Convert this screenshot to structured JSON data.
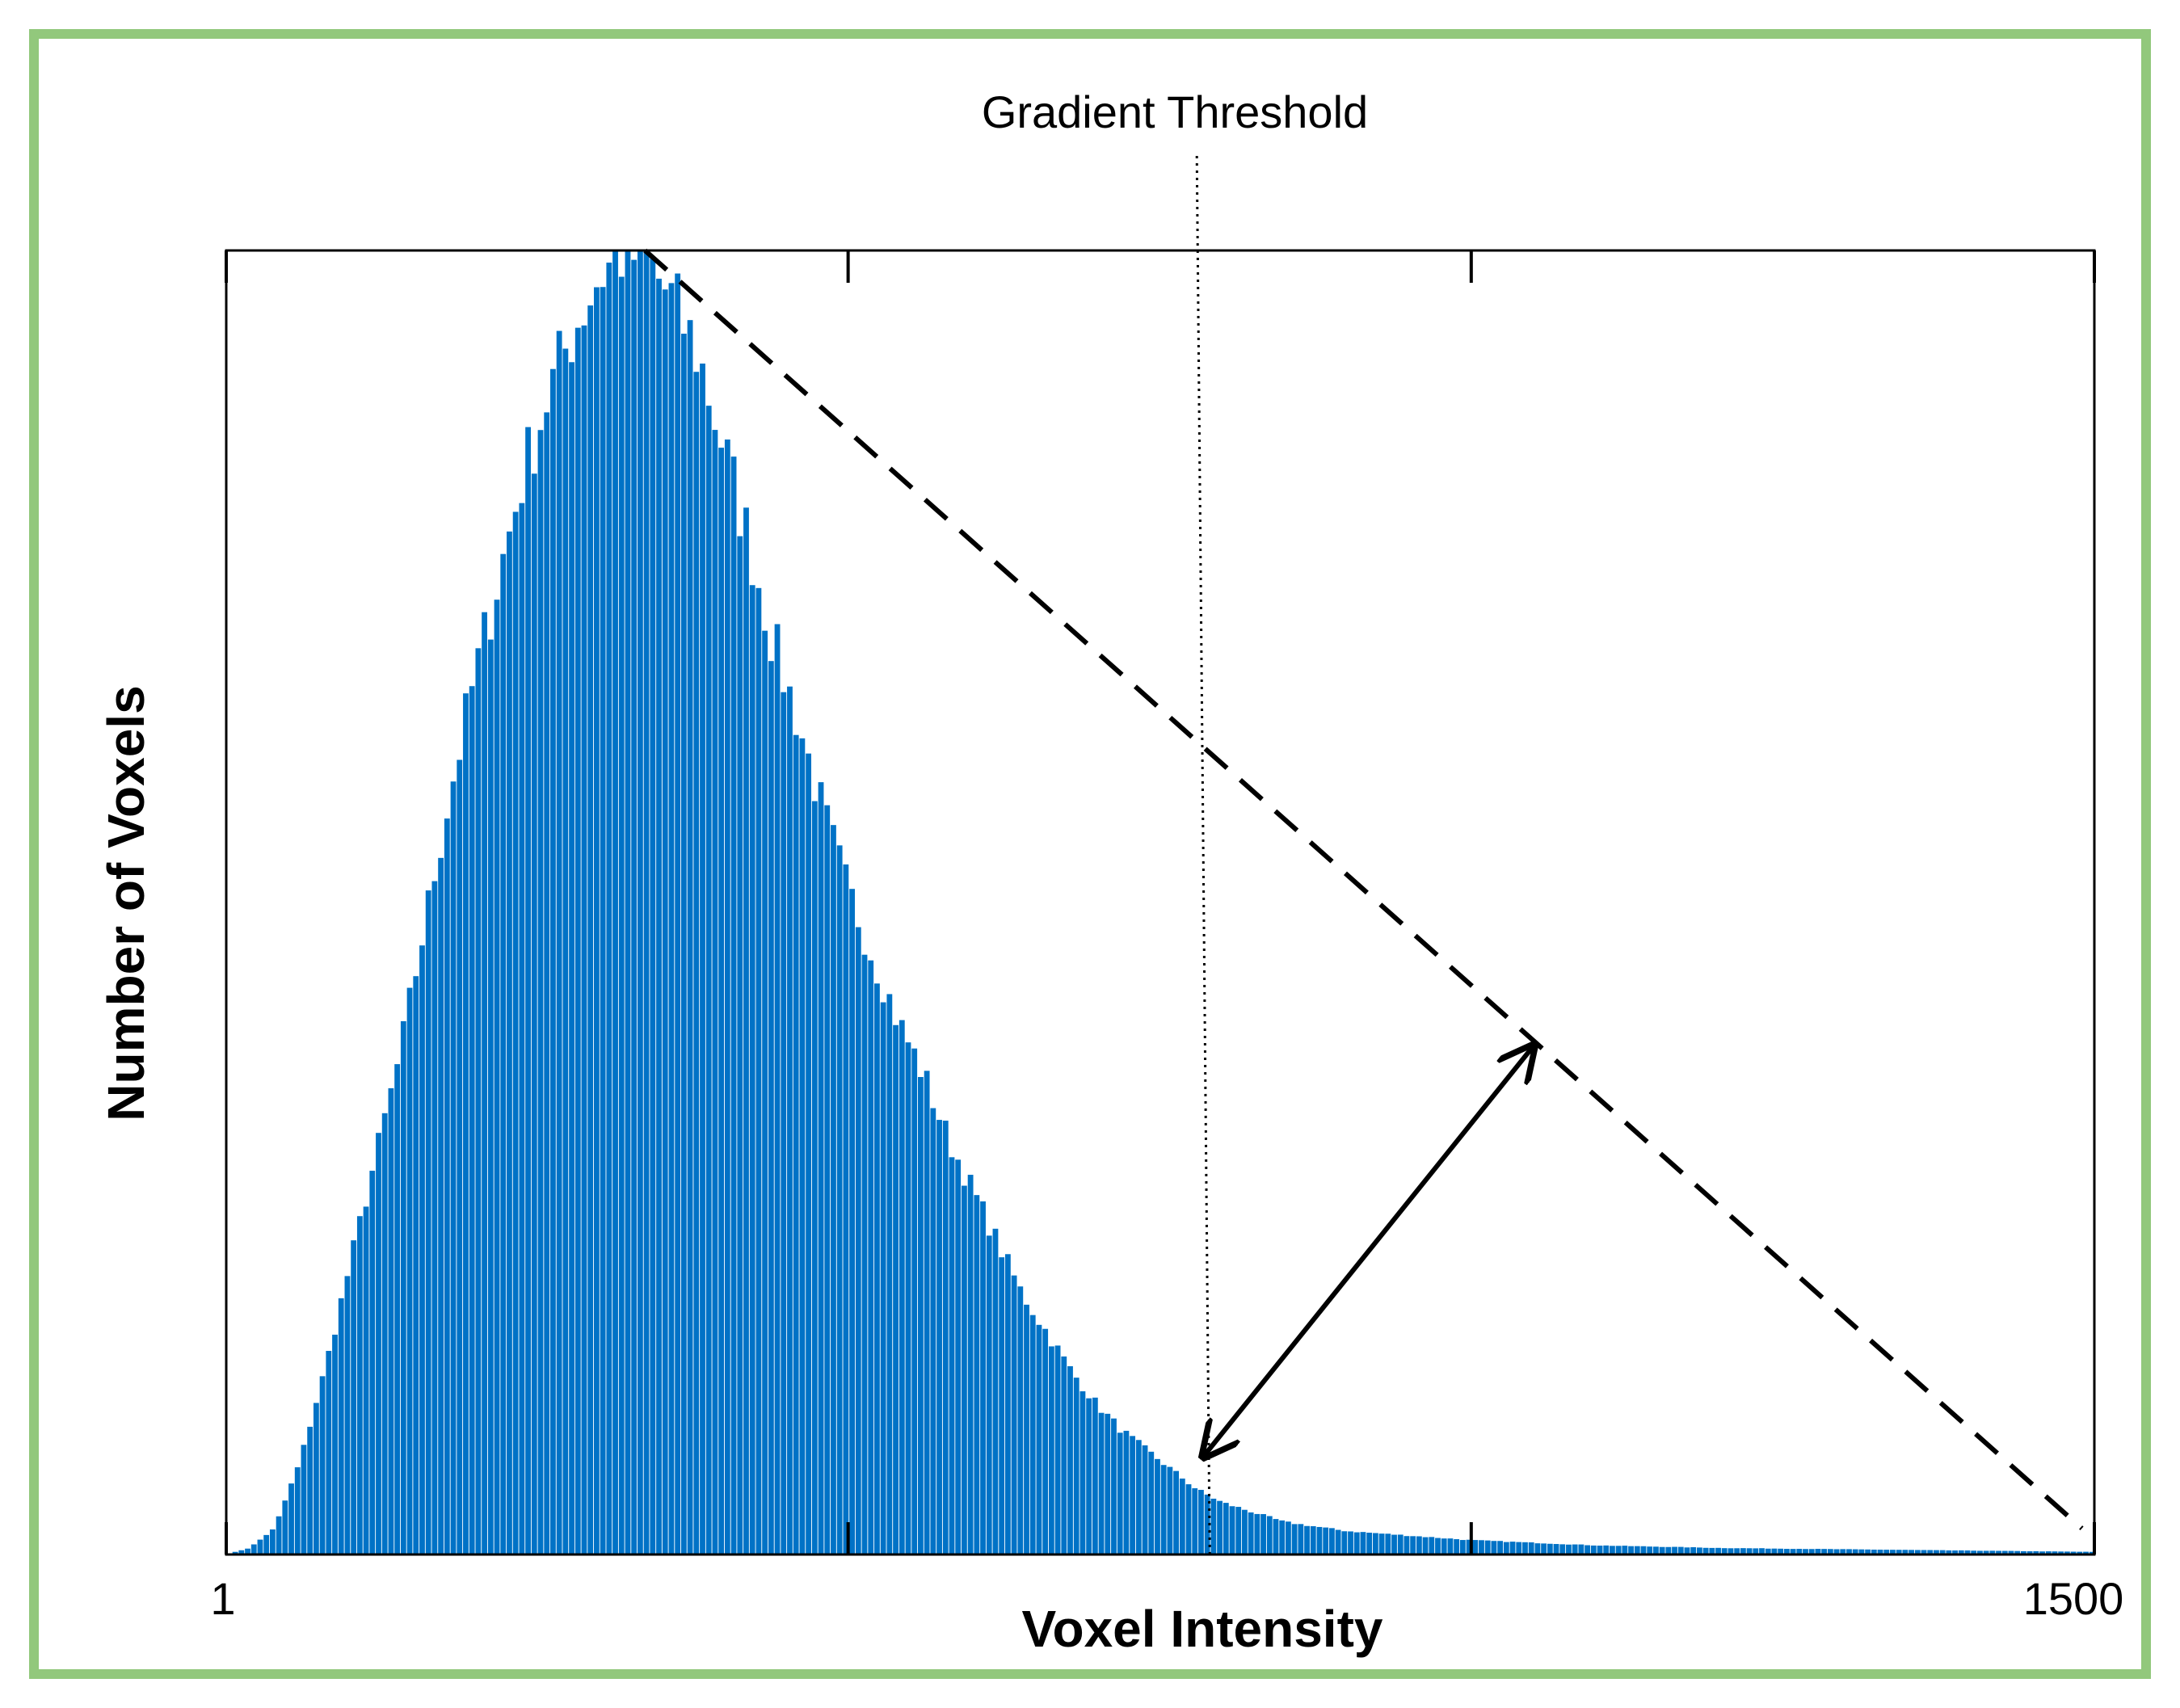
{
  "chart_data": {
    "type": "bar",
    "title": "",
    "xlabel": "Voxel Intensity",
    "ylabel": "Number of Voxels",
    "xlim": [
      1,
      1500
    ],
    "x_tick_labels": [
      "1",
      "1500"
    ],
    "y_ticks_labeled": false,
    "grid": false,
    "bins": 300,
    "bin_width": 5,
    "peak": {
      "x": 320,
      "value": 1.0
    },
    "series": [
      {
        "color": "#0072c6",
        "distribution": "right-skewed",
        "shape_points": [
          [
            1,
            0.0
          ],
          [
            20,
            0.005
          ],
          [
            40,
            0.02
          ],
          [
            60,
            0.07
          ],
          [
            80,
            0.14
          ],
          [
            100,
            0.22
          ],
          [
            120,
            0.3
          ],
          [
            140,
            0.38
          ],
          [
            160,
            0.48
          ],
          [
            180,
            0.58
          ],
          [
            200,
            0.67
          ],
          [
            220,
            0.75
          ],
          [
            240,
            0.83
          ],
          [
            260,
            0.89
          ],
          [
            280,
            0.94
          ],
          [
            300,
            0.98
          ],
          [
            320,
            1.0
          ],
          [
            340,
            0.99
          ],
          [
            360,
            0.96
          ],
          [
            380,
            0.92
          ],
          [
            400,
            0.85
          ],
          [
            420,
            0.78
          ],
          [
            440,
            0.7
          ],
          [
            460,
            0.64
          ],
          [
            480,
            0.57
          ],
          [
            500,
            0.51
          ],
          [
            520,
            0.46
          ],
          [
            540,
            0.41
          ],
          [
            560,
            0.37
          ],
          [
            580,
            0.32
          ],
          [
            600,
            0.28
          ],
          [
            620,
            0.24
          ],
          [
            640,
            0.2
          ],
          [
            660,
            0.17
          ],
          [
            680,
            0.14
          ],
          [
            700,
            0.115
          ],
          [
            720,
            0.095
          ],
          [
            740,
            0.08
          ],
          [
            760,
            0.065
          ],
          [
            780,
            0.05
          ],
          [
            800,
            0.04
          ],
          [
            850,
            0.025
          ],
          [
            900,
            0.018
          ],
          [
            1000,
            0.011
          ],
          [
            1100,
            0.007
          ],
          [
            1200,
            0.005
          ],
          [
            1300,
            0.004
          ],
          [
            1400,
            0.003
          ],
          [
            1500,
            0.002
          ]
        ]
      }
    ],
    "annotations": {
      "threshold": {
        "label": "Gradient Threshold",
        "x": 785,
        "style": "dotted"
      },
      "peak_to_end_line": {
        "from": [
          337,
          1.0
        ],
        "to": [
          1490,
          0.02
        ],
        "style": "dashed"
      },
      "perpendicular_arrow": {
        "from": [
          785,
          0.075
        ],
        "to": [
          1050,
          0.39
        ],
        "style": "double-headed"
      }
    }
  }
}
